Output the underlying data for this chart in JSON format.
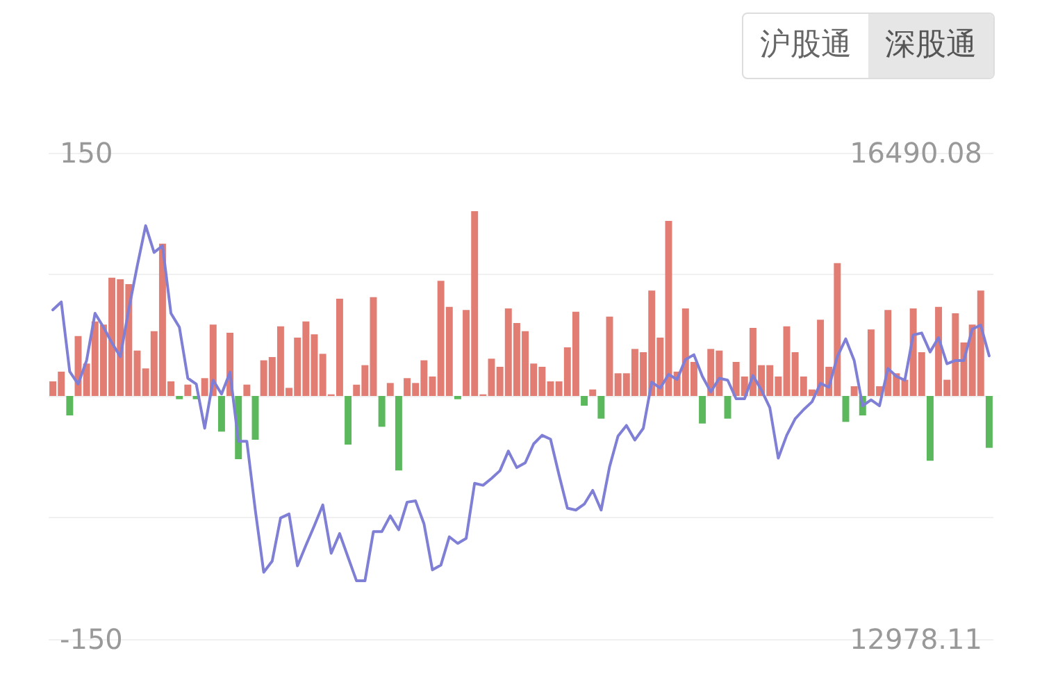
{
  "chart_data": {
    "type": "bar",
    "annotations": [
      "沪股通",
      "深股通"
    ],
    "categories": [
      null,
      null,
      null,
      null,
      null,
      null,
      null,
      null,
      null,
      null,
      null,
      null,
      null,
      null,
      null,
      null,
      null,
      null,
      null,
      null,
      null,
      null,
      null,
      null,
      null,
      null,
      null,
      null,
      null,
      null,
      null,
      null,
      null,
      null,
      null,
      null,
      null,
      null,
      null,
      null,
      null,
      null,
      null,
      null,
      null,
      null,
      null,
      null,
      null,
      null,
      null,
      null,
      null,
      null,
      null,
      null,
      null,
      null,
      null,
      null,
      null,
      null,
      null,
      null,
      null,
      null,
      null,
      null,
      null,
      null,
      null,
      null,
      null,
      null,
      null,
      null,
      null,
      null,
      null,
      null,
      null,
      null,
      null,
      null,
      null,
      null,
      null,
      null,
      null,
      null,
      null,
      null,
      null,
      null,
      null,
      null,
      null,
      null,
      null,
      null,
      null,
      null,
      null,
      null,
      null,
      null,
      null,
      null,
      null,
      null,
      null,
      null
    ],
    "series": [
      {
        "values": [
          9,
          15,
          -12,
          37,
          20,
          46,
          44,
          73,
          72,
          69,
          28,
          17,
          40,
          94,
          9,
          -2,
          7,
          -2,
          11,
          44,
          -22,
          39,
          -39,
          7,
          -27,
          22,
          24,
          43,
          5,
          36,
          46,
          38,
          26,
          1,
          60,
          -30,
          7,
          19,
          61,
          -19,
          8,
          -46,
          11,
          8,
          22,
          12,
          71,
          55,
          -2,
          53,
          114,
          1,
          23,
          18,
          54,
          45,
          40,
          20,
          18,
          9,
          9,
          30,
          52,
          -6,
          4,
          -14,
          49,
          14,
          14,
          29,
          27,
          65,
          36,
          108,
          15,
          54,
          21,
          -17,
          29,
          28,
          -14,
          21,
          12,
          42,
          19,
          19,
          12,
          43,
          27,
          12,
          4,
          47,
          18,
          82,
          -16,
          6,
          -12,
          41,
          6,
          53,
          14,
          10,
          54,
          27,
          -40,
          55,
          10,
          51,
          33,
          44,
          65,
          -32
        ],
        "colors": [
          "#e27d73",
          "#e27d73",
          "#5cb85c",
          "#e27d73",
          "#e27d73",
          "#e27d73",
          "#e27d73",
          "#e27d73",
          "#e27d73",
          "#e27d73",
          "#e27d73",
          "#e27d73",
          "#e27d73",
          "#e27d73",
          "#e27d73",
          "#5cb85c",
          "#e27d73",
          "#5cb85c",
          "#e27d73",
          "#e27d73",
          "#5cb85c",
          "#e27d73",
          "#5cb85c",
          "#e27d73",
          "#5cb85c",
          "#e27d73",
          "#e27d73",
          "#e27d73",
          "#e27d73",
          "#e27d73",
          "#e27d73",
          "#e27d73",
          "#e27d73",
          "#e27d73",
          "#e27d73",
          "#5cb85c",
          "#e27d73",
          "#e27d73",
          "#e27d73",
          "#5cb85c",
          "#e27d73",
          "#5cb85c",
          "#e27d73",
          "#e27d73",
          "#e27d73",
          "#e27d73",
          "#e27d73",
          "#e27d73",
          "#5cb85c",
          "#e27d73",
          "#e27d73",
          "#e27d73",
          "#e27d73",
          "#e27d73",
          "#e27d73",
          "#e27d73",
          "#e27d73",
          "#e27d73",
          "#e27d73",
          "#e27d73",
          "#e27d73",
          "#e27d73",
          "#e27d73",
          "#5cb85c",
          "#e27d73",
          "#5cb85c",
          "#e27d73",
          "#e27d73",
          "#e27d73",
          "#e27d73",
          "#e27d73",
          "#e27d73",
          "#e27d73",
          "#e27d73",
          "#e27d73",
          "#e27d73",
          "#e27d73",
          "#5cb85c",
          "#e27d73",
          "#e27d73",
          "#5cb85c",
          "#e27d73",
          "#e27d73",
          "#e27d73",
          "#e27d73",
          "#e27d73",
          "#e27d73",
          "#e27d73",
          "#e27d73",
          "#e27d73",
          "#e27d73",
          "#e27d73",
          "#e27d73",
          "#e27d73",
          "#5cb85c",
          "#e27d73",
          "#5cb85c",
          "#e27d73",
          "#e27d73",
          "#e27d73",
          "#e27d73",
          "#e27d73",
          "#e27d73",
          "#e27d73",
          "#5cb85c",
          "#e27d73",
          "#e27d73",
          "#e27d73",
          "#e27d73",
          "#e27d73",
          "#e27d73",
          "#5cb85c"
        ]
      },
      {
        "type": "line",
        "axis": "y2",
        "color": "#7f7fd6",
        "values": [
          15356,
          15413,
          14910,
          14820,
          14990,
          15331,
          15231,
          15118,
          15018,
          15359,
          15672,
          15964,
          15771,
          15819,
          15331,
          15231,
          14862,
          14820,
          14501,
          14848,
          14748,
          14905,
          14407,
          14407,
          13910,
          13461,
          13541,
          13853,
          13882,
          13507,
          13655,
          13797,
          13947,
          13598,
          13740,
          13569,
          13399,
          13399,
          13754,
          13754,
          13868,
          13768,
          13967,
          13976,
          13811,
          13478,
          13512,
          13717,
          13669,
          13706,
          14103,
          14089,
          14138,
          14194,
          14336,
          14217,
          14251,
          14388,
          14450,
          14422,
          14166,
          13924,
          13910,
          13953,
          14052,
          13910,
          14223,
          14444,
          14521,
          14416,
          14501,
          14834,
          14791,
          14890,
          14853,
          14998,
          15032,
          14876,
          14763,
          14862,
          14848,
          14714,
          14714,
          14882,
          14777,
          14649,
          14285,
          14450,
          14569,
          14635,
          14692,
          14825,
          14797,
          15018,
          15146,
          14990,
          14663,
          14706,
          14663,
          14933,
          14876,
          14848,
          15175,
          15189,
          15052,
          15155,
          14967,
          14990,
          14990,
          15217,
          15246,
          15024
        ]
      }
    ],
    "ylim": [
      -150,
      150
    ],
    "yticks": [
      {
        "value": -150,
        "label": "-150"
      },
      {
        "value": -75,
        "label": null
      },
      {
        "value": 0,
        "label": null
      },
      {
        "value": 75,
        "label": null
      },
      {
        "value": 150,
        "label": "150"
      }
    ],
    "y2lim": [
      12978.11,
      16490.08
    ],
    "y2ticks": [
      {
        "value": 12978.11,
        "label": "12978.11"
      },
      {
        "value": 16490.08,
        "label": "16490.08"
      }
    ],
    "tick_labels": "y",
    "grid": "y",
    "line_style": "solid"
  }
}
